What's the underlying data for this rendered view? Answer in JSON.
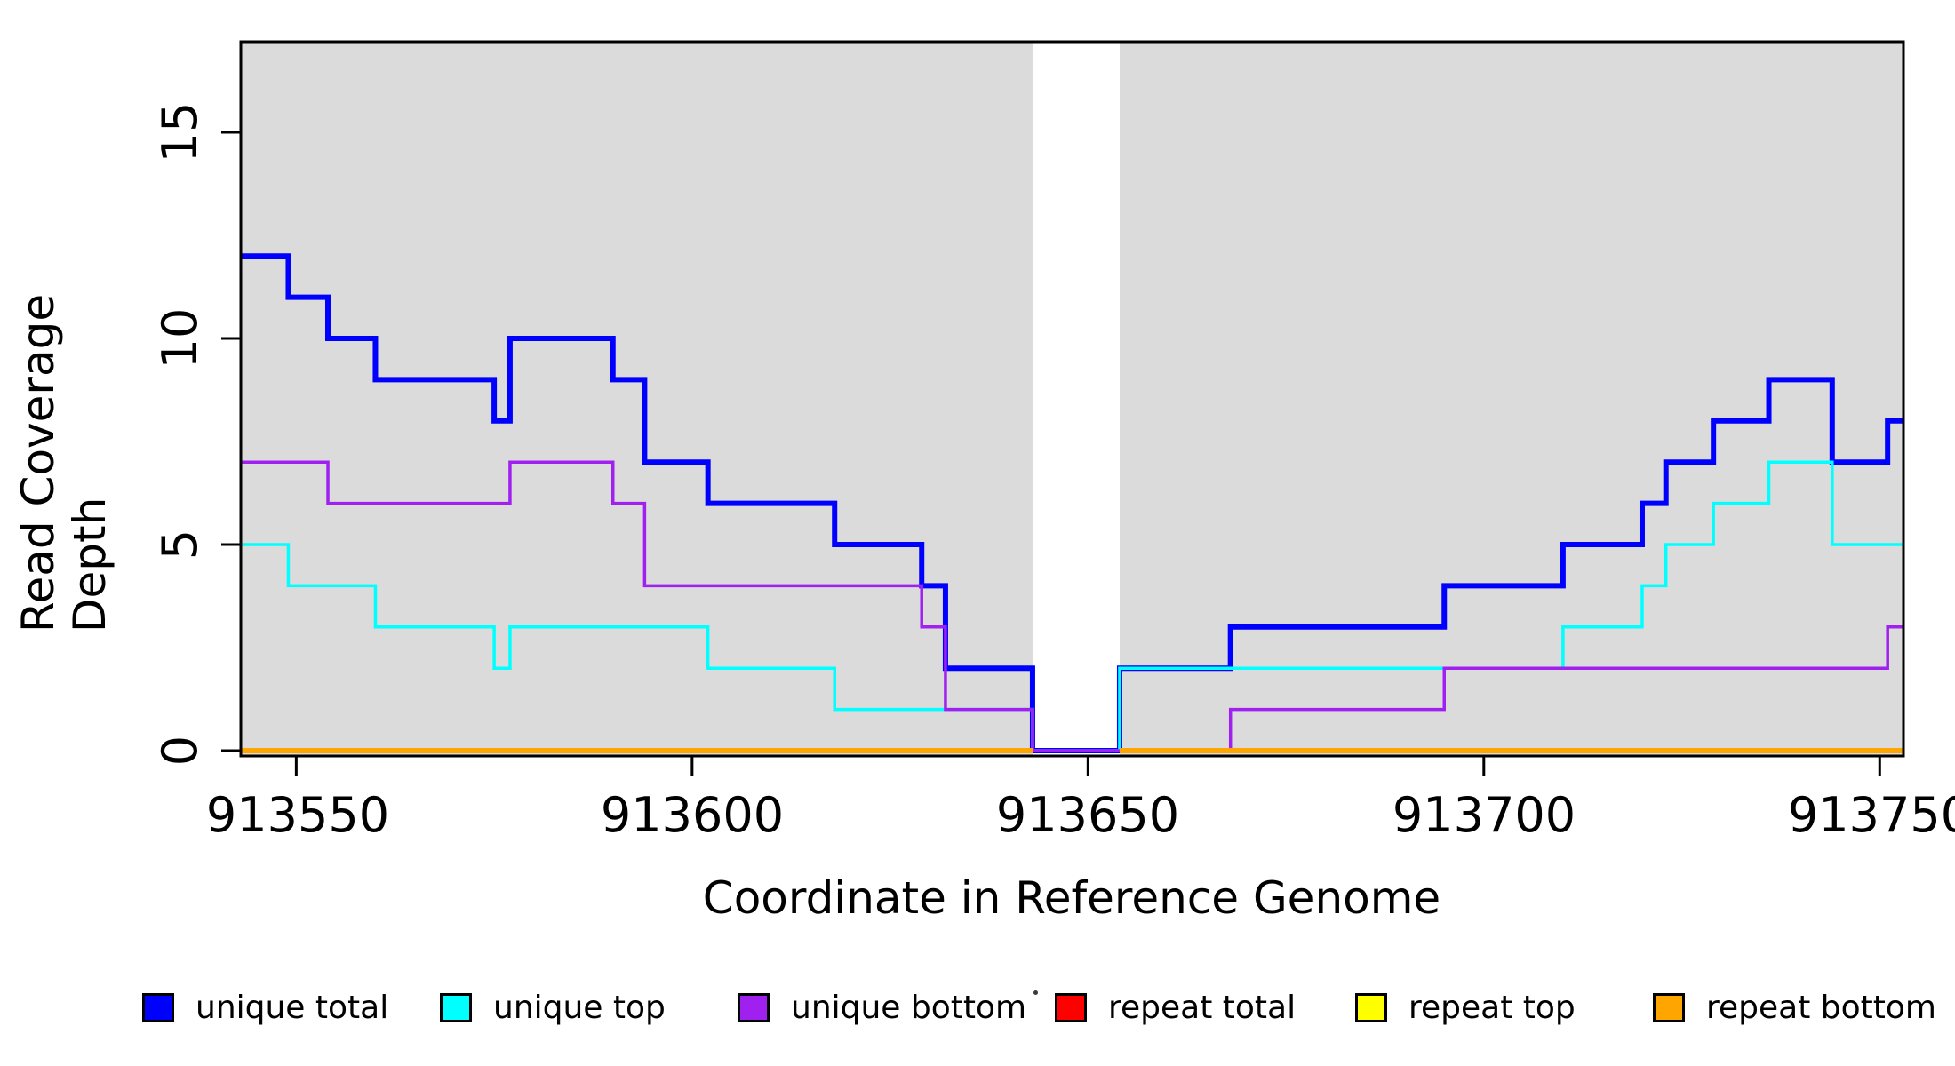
{
  "figure": {
    "background": "#FFFFFF",
    "plot_background": "#DBDBDB",
    "gap_background": "#FFFFFF"
  },
  "axes": {
    "xlabel": "Coordinate in Reference Genome",
    "ylabel": "Read Coverage Depth",
    "x_tick_labels": [
      "913550",
      "913600",
      "913650",
      "913700",
      "913750"
    ],
    "y_tick_labels": [
      "0",
      "5",
      "10",
      "15"
    ]
  },
  "chart_data": {
    "type": "line",
    "subtype": "step-coverage",
    "title": "",
    "xlabel": "Coordinate in Reference Genome",
    "ylabel": "Read Coverage Depth",
    "x_ticks": [
      913550,
      913600,
      913650,
      913700,
      913750
    ],
    "y_ticks": [
      0,
      5,
      10,
      15
    ],
    "xlim": [
      913543,
      913753
    ],
    "ylim": [
      0,
      17.2
    ],
    "grid": false,
    "legend_position": "bottom",
    "shaded_regions": [
      [
        913543,
        913643
      ],
      [
        913654,
        913753
      ]
    ],
    "gap_region": [
      913643,
      913654
    ],
    "breakpoints": [
      913543,
      913549,
      913554,
      913560,
      913575,
      913577,
      913590,
      913594,
      913602,
      913618,
      913629,
      913632,
      913643,
      913654,
      913668,
      913695,
      913710,
      913720,
      913723,
      913729,
      913736,
      913744,
      913751,
      913753
    ],
    "series": [
      {
        "name": "unique total",
        "color": "#0000FF",
        "width": 6,
        "values": [
          12,
          11,
          10,
          9,
          8,
          10,
          9,
          7,
          6,
          5,
          4,
          2,
          0,
          2,
          3,
          4,
          5,
          6,
          7,
          8,
          9,
          7,
          8
        ]
      },
      {
        "name": "unique top",
        "color": "#00FFFF",
        "width": 3.5,
        "values": [
          5,
          4,
          4,
          3,
          2,
          3,
          3,
          3,
          2,
          1,
          1,
          1,
          0,
          2,
          2,
          2,
          3,
          4,
          5,
          6,
          7,
          5,
          5
        ]
      },
      {
        "name": "unique bottom",
        "color": "#A020F0",
        "width": 3.5,
        "values": [
          7,
          7,
          6,
          6,
          6,
          7,
          6,
          4,
          4,
          4,
          3,
          1,
          0,
          0,
          1,
          2,
          2,
          2,
          2,
          2,
          2,
          2,
          3
        ]
      },
      {
        "name": "repeat total",
        "color": "#FF0000",
        "width": 3.5,
        "split_at_gap": true,
        "values": [
          0,
          0,
          0,
          0,
          0,
          0,
          0,
          0,
          0,
          0,
          0,
          0,
          0,
          0,
          0,
          0,
          0,
          0,
          0,
          0,
          0,
          0,
          0
        ]
      },
      {
        "name": "repeat top",
        "color": "#FFFF00",
        "width": 3.5,
        "split_at_gap": true,
        "values": [
          0,
          0,
          0,
          0,
          0,
          0,
          0,
          0,
          0,
          0,
          0,
          0,
          0,
          0,
          0,
          0,
          0,
          0,
          0,
          0,
          0,
          0,
          0
        ]
      },
      {
        "name": "repeat bottom",
        "color": "#FFA500",
        "width": 6,
        "split_at_gap": true,
        "values": [
          0,
          0,
          0,
          0,
          0,
          0,
          0,
          0,
          0,
          0,
          0,
          0,
          0,
          0,
          0,
          0,
          0,
          0,
          0,
          0,
          0,
          0,
          0
        ]
      }
    ]
  },
  "legend": {
    "items": [
      {
        "label": "unique total",
        "color": "#0000FF"
      },
      {
        "label": "unique top",
        "color": "#00FFFF"
      },
      {
        "label": "unique bottom",
        "color": "#A020F0"
      },
      {
        "label": "repeat total",
        "color": "#FF0000"
      },
      {
        "label": "repeat top",
        "color": "#FFFF00"
      },
      {
        "label": "repeat bottom",
        "color": "#FFA500"
      }
    ]
  }
}
